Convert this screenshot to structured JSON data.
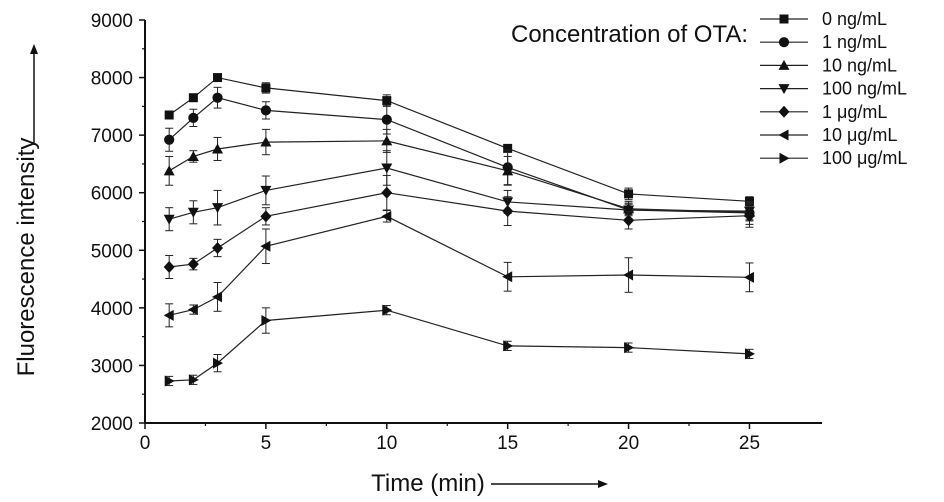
{
  "chart_data": {
    "type": "line",
    "title": "",
    "xlabel": "Time (min)",
    "ylabel": "Fluorescence intensity",
    "xlim": [
      0,
      28
    ],
    "ylim": [
      2000,
      9000
    ],
    "xticks": [
      0,
      5,
      10,
      15,
      20,
      25
    ],
    "yticks": [
      2000,
      3000,
      4000,
      5000,
      6000,
      7000,
      8000,
      9000
    ],
    "grid": false,
    "legend": {
      "title": "Concentration of OTA:",
      "position": "top-right"
    },
    "x": [
      1,
      2,
      3,
      5,
      10,
      15,
      20,
      25
    ],
    "series": [
      {
        "name": "0 ng/mL",
        "marker": "square",
        "values": [
          7350,
          7650,
          8000,
          7820,
          7600,
          6770,
          5980,
          5850
        ],
        "errors": [
          60,
          60,
          60,
          90,
          100,
          60,
          100,
          80
        ]
      },
      {
        "name": "1 ng/mL",
        "marker": "circle",
        "values": [
          6920,
          7300,
          7650,
          7430,
          7270,
          6440,
          5700,
          5650
        ],
        "errors": [
          200,
          150,
          180,
          150,
          250,
          300,
          100,
          200
        ]
      },
      {
        "name": "10 ng/mL",
        "marker": "triangle-up",
        "values": [
          6380,
          6630,
          6760,
          6880,
          6900,
          6380,
          5720,
          5660
        ],
        "errors": [
          250,
          100,
          200,
          220,
          200,
          250,
          100,
          150
        ]
      },
      {
        "name": "100 ng/mL",
        "marker": "triangle-down",
        "values": [
          5540,
          5660,
          5740,
          6040,
          6430,
          5840,
          5700,
          5680
        ],
        "errors": [
          200,
          200,
          300,
          250,
          300,
          200,
          150,
          150
        ]
      },
      {
        "name": "1 μg/mL",
        "marker": "diamond",
        "values": [
          4710,
          4760,
          5040,
          5590,
          6000,
          5680,
          5520,
          5600
        ],
        "errors": [
          200,
          100,
          150,
          150,
          300,
          250,
          150,
          200
        ]
      },
      {
        "name": "10 μg/mL",
        "marker": "triangle-left",
        "values": [
          3870,
          3970,
          4190,
          5070,
          5590,
          4540,
          4570,
          4530
        ],
        "errors": [
          200,
          80,
          250,
          300,
          100,
          250,
          300,
          250
        ]
      },
      {
        "name": "100 μg/mL",
        "marker": "triangle-right",
        "values": [
          2730,
          2750,
          3040,
          3780,
          3960,
          3340,
          3310,
          3200
        ],
        "errors": [
          80,
          80,
          150,
          220,
          80,
          80,
          80,
          80
        ]
      }
    ]
  }
}
